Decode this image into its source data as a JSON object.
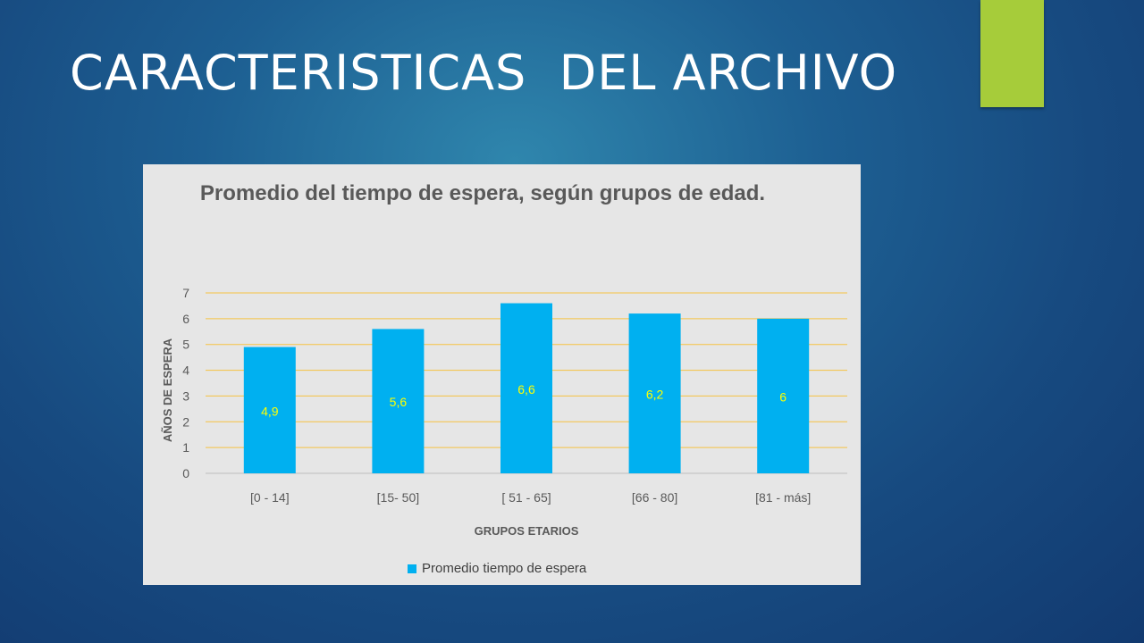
{
  "slide": {
    "title": "CARACTERISTICAS  DEL ARCHIVO",
    "accent_color": "#a6cc3a",
    "background_color": "#1d5f92"
  },
  "chart_data": {
    "type": "bar",
    "title": "Promedio del tiempo de espera, según grupos de edad.",
    "xlabel": "GRUPOS ETARIOS",
    "ylabel": "AÑOS DE ESPERA",
    "categories": [
      "[0 - 14]",
      "[15- 50]",
      "[ 51 - 65]",
      "[66 - 80]",
      "[81 - más]"
    ],
    "series": [
      {
        "name": "Promedio tiempo de espera",
        "values": [
          4.9,
          5.6,
          6.6,
          6.2,
          6
        ],
        "data_labels": [
          "4,9",
          "5,6",
          "6,6",
          "6,2",
          "6"
        ],
        "color": "#00b0f0"
      }
    ],
    "ylim": [
      0,
      7
    ],
    "yticks": [
      "0",
      "1",
      "2",
      "3",
      "4",
      "5",
      "6",
      "7"
    ],
    "grid": true,
    "gridline_color": "#f5c242",
    "data_label_color": "#ffff00",
    "legend_position": "bottom"
  }
}
